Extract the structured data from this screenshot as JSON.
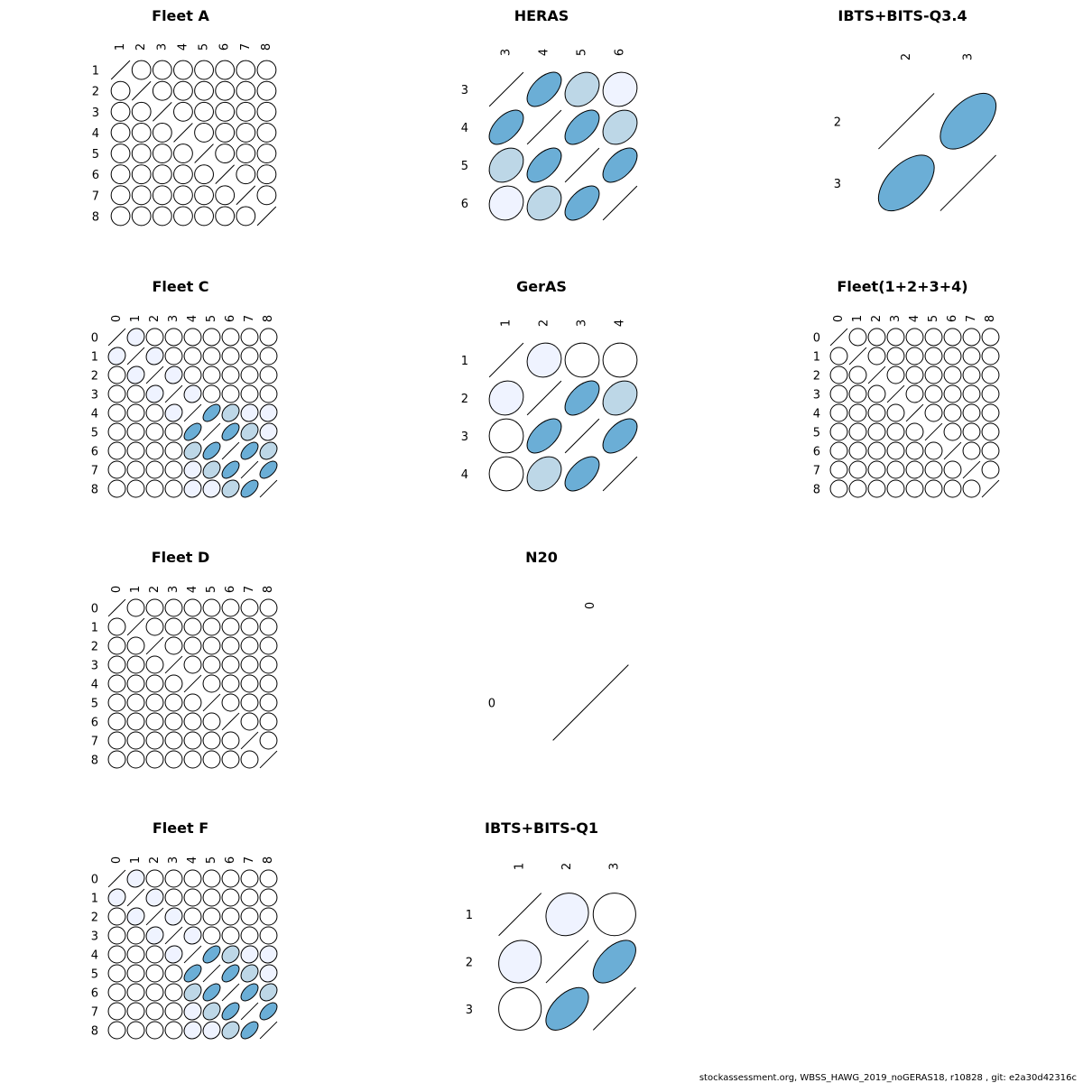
{
  "footer": "stockassessment.org, WBSS_HAWG_2019_noGERAS18, r10828 , git: e2a30d42316c",
  "colors": {
    "weak": "#ffffff",
    "light": "#eff3ff",
    "medium": "#bdd7e7",
    "strong": "#6baed6",
    "stroke": "#000000"
  },
  "chart_data": [
    {
      "type": "heatmap",
      "title": "Fleet A",
      "ages": [
        "1",
        "2",
        "3",
        "4",
        "5",
        "6",
        "7",
        "8"
      ],
      "correlations": [
        [
          1,
          0,
          0,
          0,
          0,
          0,
          0,
          0
        ],
        [
          0,
          1,
          0,
          0,
          0,
          0,
          0,
          0
        ],
        [
          0,
          0,
          1,
          0,
          0,
          0,
          0,
          0
        ],
        [
          0,
          0,
          0,
          1,
          0,
          0,
          0,
          0
        ],
        [
          0,
          0,
          0,
          0,
          1,
          0,
          0,
          0
        ],
        [
          0,
          0,
          0,
          0,
          0,
          1,
          0,
          0
        ],
        [
          0,
          0,
          0,
          0,
          0,
          0,
          1,
          0
        ],
        [
          0,
          0,
          0,
          0,
          0,
          0,
          0,
          1
        ]
      ]
    },
    {
      "type": "heatmap",
      "title": "HERAS",
      "ages": [
        "3",
        "4",
        "5",
        "6"
      ],
      "correlations": [
        [
          1,
          0.6,
          0.3,
          0.1
        ],
        [
          0.6,
          1,
          0.6,
          0.3
        ],
        [
          0.3,
          0.6,
          1,
          0.6
        ],
        [
          0.1,
          0.3,
          0.6,
          1
        ]
      ]
    },
    {
      "type": "heatmap",
      "title": "IBTS+BITS-Q3.4",
      "ages": [
        "2",
        "3"
      ],
      "correlations": [
        [
          1,
          0.6
        ],
        [
          0.6,
          1
        ]
      ]
    },
    {
      "type": "heatmap",
      "title": "Fleet C",
      "ages": [
        "0",
        "1",
        "2",
        "3",
        "4",
        "5",
        "6",
        "7",
        "8"
      ],
      "correlations": [
        [
          1,
          0.1,
          0,
          0,
          0,
          0,
          0,
          0,
          0
        ],
        [
          0.1,
          1,
          0.1,
          0,
          0,
          0,
          0,
          0,
          0
        ],
        [
          0,
          0.1,
          1,
          0.1,
          0,
          0,
          0,
          0,
          0
        ],
        [
          0,
          0,
          0.1,
          1,
          0.1,
          0,
          0,
          0,
          0
        ],
        [
          0,
          0,
          0,
          0.1,
          1,
          0.6,
          0.3,
          0.1,
          0.1
        ],
        [
          0,
          0,
          0,
          0,
          0.6,
          1,
          0.6,
          0.3,
          0.1
        ],
        [
          0,
          0,
          0,
          0,
          0.3,
          0.6,
          1,
          0.6,
          0.3
        ],
        [
          0,
          0,
          0,
          0,
          0.1,
          0.3,
          0.6,
          1,
          0.6
        ],
        [
          0,
          0,
          0,
          0,
          0.1,
          0.1,
          0.3,
          0.6,
          1
        ]
      ]
    },
    {
      "type": "heatmap",
      "title": "GerAS",
      "ages": [
        "1",
        "2",
        "3",
        "4"
      ],
      "correlations": [
        [
          1,
          0.1,
          0,
          0
        ],
        [
          0.1,
          1,
          0.6,
          0.3
        ],
        [
          0,
          0.6,
          1,
          0.6
        ],
        [
          0,
          0.3,
          0.6,
          1
        ]
      ]
    },
    {
      "type": "heatmap",
      "title": "Fleet(1+2+3+4)",
      "ages": [
        "0",
        "1",
        "2",
        "3",
        "4",
        "5",
        "6",
        "7",
        "8"
      ],
      "correlations": [
        [
          1,
          0,
          0,
          0,
          0,
          0,
          0,
          0,
          0
        ],
        [
          0,
          1,
          0,
          0,
          0,
          0,
          0,
          0,
          0
        ],
        [
          0,
          0,
          1,
          0,
          0,
          0,
          0,
          0,
          0
        ],
        [
          0,
          0,
          0,
          1,
          0,
          0,
          0,
          0,
          0
        ],
        [
          0,
          0,
          0,
          0,
          1,
          0,
          0,
          0,
          0
        ],
        [
          0,
          0,
          0,
          0,
          0,
          1,
          0,
          0,
          0
        ],
        [
          0,
          0,
          0,
          0,
          0,
          0,
          1,
          0,
          0
        ],
        [
          0,
          0,
          0,
          0,
          0,
          0,
          0,
          1,
          0
        ],
        [
          0,
          0,
          0,
          0,
          0,
          0,
          0,
          0,
          1
        ]
      ]
    },
    {
      "type": "heatmap",
      "title": "Fleet D",
      "ages": [
        "0",
        "1",
        "2",
        "3",
        "4",
        "5",
        "6",
        "7",
        "8"
      ],
      "correlations": [
        [
          1,
          0,
          0,
          0,
          0,
          0,
          0,
          0,
          0
        ],
        [
          0,
          1,
          0,
          0,
          0,
          0,
          0,
          0,
          0
        ],
        [
          0,
          0,
          1,
          0,
          0,
          0,
          0,
          0,
          0
        ],
        [
          0,
          0,
          0,
          1,
          0,
          0,
          0,
          0,
          0
        ],
        [
          0,
          0,
          0,
          0,
          1,
          0,
          0,
          0,
          0
        ],
        [
          0,
          0,
          0,
          0,
          0,
          1,
          0,
          0,
          0
        ],
        [
          0,
          0,
          0,
          0,
          0,
          0,
          1,
          0,
          0
        ],
        [
          0,
          0,
          0,
          0,
          0,
          0,
          0,
          1,
          0
        ],
        [
          0,
          0,
          0,
          0,
          0,
          0,
          0,
          0,
          1
        ]
      ]
    },
    {
      "type": "heatmap",
      "title": "N20",
      "ages": [
        "0"
      ],
      "correlations": [
        [
          1
        ]
      ]
    },
    {
      "type": "heatmap",
      "title": "Fleet F",
      "ages": [
        "0",
        "1",
        "2",
        "3",
        "4",
        "5",
        "6",
        "7",
        "8"
      ],
      "correlations": [
        [
          1,
          0.1,
          0,
          0,
          0,
          0,
          0,
          0,
          0
        ],
        [
          0.1,
          1,
          0.1,
          0,
          0,
          0,
          0,
          0,
          0
        ],
        [
          0,
          0.1,
          1,
          0.1,
          0,
          0,
          0,
          0,
          0
        ],
        [
          0,
          0,
          0.1,
          1,
          0.1,
          0,
          0,
          0,
          0
        ],
        [
          0,
          0,
          0,
          0.1,
          1,
          0.6,
          0.3,
          0.1,
          0.1
        ],
        [
          0,
          0,
          0,
          0,
          0.6,
          1,
          0.6,
          0.3,
          0.1
        ],
        [
          0,
          0,
          0,
          0,
          0.3,
          0.6,
          1,
          0.6,
          0.3
        ],
        [
          0,
          0,
          0,
          0,
          0.1,
          0.3,
          0.6,
          1,
          0.6
        ],
        [
          0,
          0,
          0,
          0,
          0.1,
          0.1,
          0.3,
          0.6,
          1
        ]
      ]
    },
    {
      "type": "heatmap",
      "title": "IBTS+BITS-Q1",
      "ages": [
        "1",
        "2",
        "3"
      ],
      "correlations": [
        [
          1,
          0.1,
          0
        ],
        [
          0.1,
          1,
          0.6
        ],
        [
          0,
          0.6,
          1
        ]
      ]
    }
  ]
}
